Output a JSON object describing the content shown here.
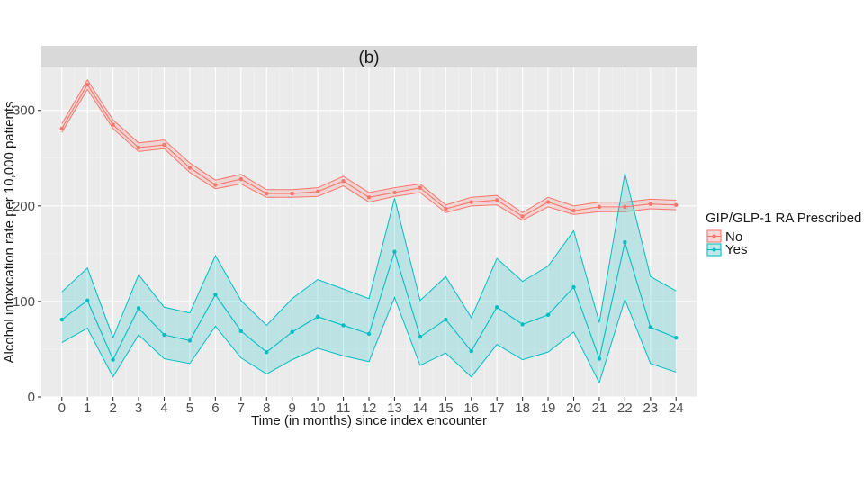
{
  "chart_data": {
    "type": "line",
    "panel_label": "(b)",
    "xlabel": "Time (in months) since index encounter",
    "ylabel": "Alcohol intoxication rate per 10,000 patients",
    "x": [
      0,
      1,
      2,
      3,
      4,
      5,
      6,
      7,
      8,
      9,
      10,
      11,
      12,
      13,
      14,
      15,
      16,
      17,
      18,
      19,
      20,
      21,
      22,
      23,
      24
    ],
    "x_ticks": [
      "0",
      "1",
      "2",
      "3",
      "4",
      "5",
      "6",
      "7",
      "8",
      "9",
      "10",
      "11",
      "12",
      "13",
      "14",
      "15",
      "16",
      "17",
      "18",
      "19",
      "20",
      "21",
      "22",
      "23",
      "24"
    ],
    "xlim": [
      -0.8,
      24.8
    ],
    "ylim": [
      0,
      345
    ],
    "y_ticks": [
      0,
      100,
      200,
      300
    ],
    "y_tick_labels": [
      "0",
      "100",
      "200",
      "300"
    ],
    "grid": true,
    "legend": {
      "title": "GIP/GLP-1 RA Prescribed",
      "position": "right",
      "entries": [
        "No",
        "Yes"
      ]
    },
    "series": [
      {
        "name": "No",
        "color": "#F8766D",
        "values": [
          281,
          327,
          285,
          261,
          264,
          240,
          222,
          228,
          213,
          213,
          215,
          226,
          209,
          214,
          219,
          197,
          204,
          206,
          189,
          204,
          195,
          199,
          199,
          202,
          201
        ],
        "lower": [
          277,
          322,
          281,
          257,
          260,
          235,
          218,
          223,
          209,
          209,
          210,
          221,
          204,
          210,
          214,
          193,
          200,
          201,
          185,
          199,
          191,
          194,
          194,
          197,
          196
        ],
        "upper": [
          286,
          332,
          290,
          266,
          269,
          245,
          227,
          233,
          217,
          217,
          219,
          231,
          214,
          219,
          223,
          201,
          209,
          211,
          193,
          209,
          200,
          204,
          204,
          207,
          206
        ]
      },
      {
        "name": "Yes",
        "color": "#00BFC4",
        "values": [
          81,
          101,
          39,
          93,
          65,
          59,
          107,
          69,
          47,
          68,
          84,
          75,
          66,
          152,
          63,
          81,
          48,
          94,
          76,
          86,
          115,
          40,
          162,
          73,
          62
        ],
        "lower": [
          57,
          72,
          21,
          65,
          40,
          35,
          74,
          41,
          24,
          39,
          51,
          43,
          37,
          104,
          33,
          46,
          21,
          55,
          39,
          47,
          68,
          15,
          102,
          35,
          26
        ],
        "upper": [
          110,
          135,
          62,
          128,
          94,
          88,
          148,
          101,
          75,
          103,
          123,
          113,
          103,
          208,
          101,
          126,
          83,
          145,
          121,
          137,
          174,
          78,
          234,
          126,
          111
        ]
      }
    ]
  }
}
